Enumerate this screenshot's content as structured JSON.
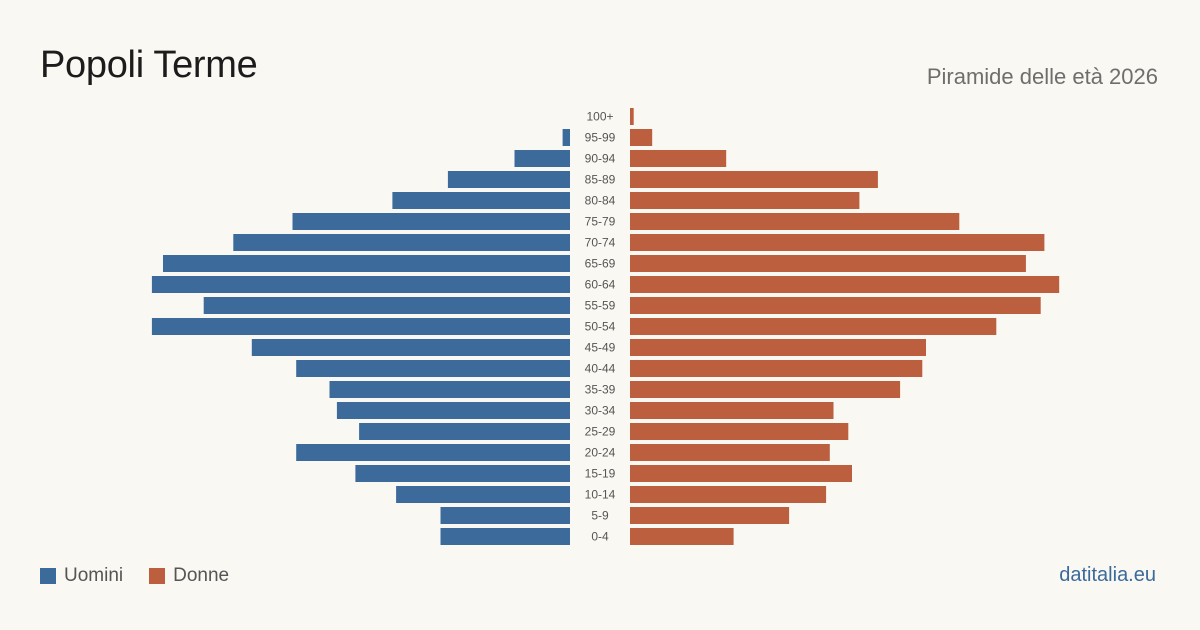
{
  "title": "Popoli Terme",
  "subtitle": "Piramide delle età 2026",
  "brand": "datitalia.eu",
  "colors": {
    "men": "#3b6a9b",
    "women": "#bb5f3e",
    "background": "#faf8f3"
  },
  "chart_data": {
    "type": "bar",
    "orientation": "horizontal-pyramid",
    "categories": [
      "100+",
      "95-99",
      "90-94",
      "85-89",
      "80-84",
      "75-79",
      "70-74",
      "65-69",
      "60-64",
      "55-59",
      "50-54",
      "45-49",
      "40-44",
      "35-39",
      "30-34",
      "25-29",
      "20-24",
      "15-19",
      "10-14",
      "5-9",
      "0-4"
    ],
    "series": [
      {
        "name": "Uomini",
        "values": [
          0,
          2,
          15,
          33,
          48,
          75,
          91,
          110,
          113,
          99,
          113,
          86,
          74,
          65,
          63,
          57,
          74,
          58,
          47,
          35,
          35
        ]
      },
      {
        "name": "Donne",
        "values": [
          1,
          6,
          26,
          67,
          62,
          89,
          112,
          107,
          116,
          111,
          99,
          80,
          79,
          73,
          55,
          59,
          54,
          60,
          53,
          43,
          28
        ]
      }
    ],
    "legend": "bottom-left",
    "grid": false
  }
}
